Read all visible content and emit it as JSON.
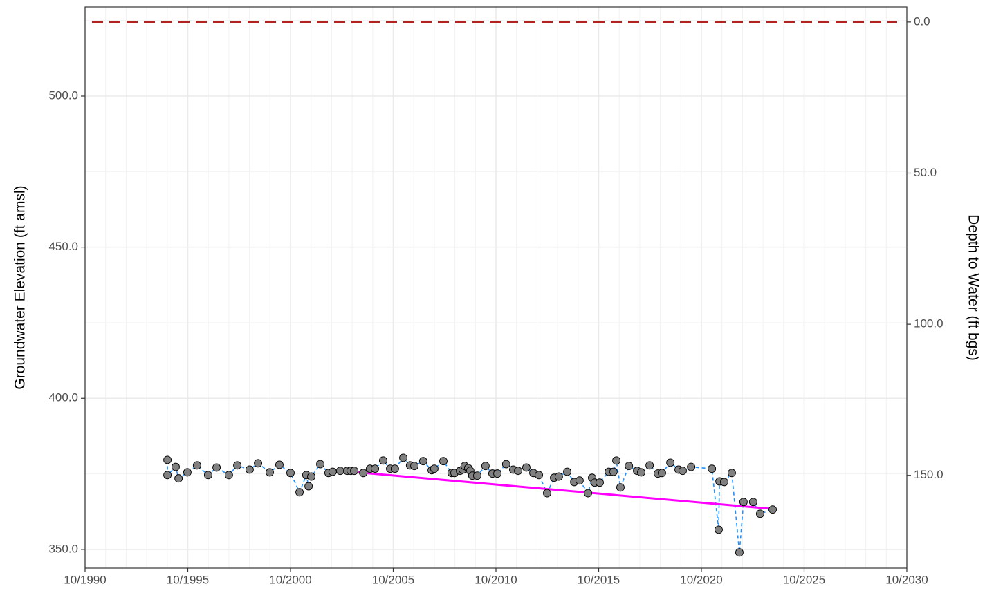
{
  "chart_data": {
    "type": "scatter",
    "y_label": "Groundwater Elevation (ft amsl)",
    "y2_label": "Depth to Water (ft bgs)",
    "xlim": [
      1990.75,
      2030.75
    ],
    "xticks": [
      {
        "value": 1990.75,
        "label": "10/1990"
      },
      {
        "value": 1995.75,
        "label": "10/1995"
      },
      {
        "value": 2000.75,
        "label": "10/2000"
      },
      {
        "value": 2005.75,
        "label": "10/2005"
      },
      {
        "value": 2010.75,
        "label": "10/2010"
      },
      {
        "value": 2015.75,
        "label": "10/2015"
      },
      {
        "value": 2020.75,
        "label": "10/2020"
      },
      {
        "value": 2025.75,
        "label": "10/2025"
      },
      {
        "value": 2030.75,
        "label": "10/2030"
      }
    ],
    "ylim": [
      343.8,
      529.5
    ],
    "yticks": [
      {
        "value": 350,
        "label": "350.0"
      },
      {
        "value": 400,
        "label": "400.0"
      },
      {
        "value": 450,
        "label": "450.0"
      },
      {
        "value": 500,
        "label": "500.0"
      }
    ],
    "y2lim": [
      180.7,
      -5
    ],
    "y2ticks": [
      {
        "value": 0,
        "label": "0.0"
      },
      {
        "value": 50,
        "label": "50.0"
      },
      {
        "value": 100,
        "label": "100.0"
      },
      {
        "value": 150,
        "label": "150.0"
      }
    ],
    "grid": true,
    "minor_grid": true,
    "series": [
      {
        "color": "#808080",
        "line_color": "#1e90ff",
        "x": [
          1994.76,
          1994.76,
          1995.16,
          1995.3,
          1995.73,
          1996.2,
          1996.74,
          1997.15,
          1997.75,
          1998.16,
          1998.76,
          1999.17,
          1999.74,
          2000.21,
          2000.75,
          2001.19,
          2001.52,
          2001.63,
          2001.76,
          2002.2,
          2002.6,
          2002.8,
          2003.17,
          2003.51,
          2003.68,
          2003.85,
          2004.29,
          2004.62,
          2004.86,
          2005.26,
          2005.6,
          2005.83,
          2006.24,
          2006.57,
          2006.78,
          2007.21,
          2007.62,
          2007.75,
          2008.19,
          2008.59,
          2008.73,
          2009.0,
          2009.13,
          2009.23,
          2009.4,
          2009.5,
          2009.6,
          2009.84,
          2010.24,
          2010.58,
          2010.82,
          2011.25,
          2011.59,
          2011.83,
          2012.23,
          2012.57,
          2012.84,
          2013.24,
          2013.58,
          2013.81,
          2014.22,
          2014.56,
          2014.82,
          2015.23,
          2015.43,
          2015.56,
          2015.8,
          2016.24,
          2016.47,
          2016.61,
          2016.81,
          2017.22,
          2017.62,
          2017.82,
          2018.23,
          2018.63,
          2018.83,
          2019.24,
          2019.64,
          2019.84,
          2020.25,
          2021.26,
          2021.59,
          2021.63,
          2021.86,
          2022.23,
          2022.6,
          2022.8,
          2023.27,
          2023.61,
          2024.22
        ],
        "values": [
          379.6,
          374.6,
          377.3,
          373.5,
          375.5,
          377.8,
          374.6,
          377.1,
          374.6,
          377.8,
          376.4,
          378.5,
          375.5,
          378.0,
          375.3,
          368.9,
          374.6,
          370.9,
          374.1,
          378.2,
          375.3,
          375.7,
          376.0,
          376.0,
          376.0,
          376.0,
          375.3,
          376.7,
          376.7,
          379.4,
          376.7,
          376.7,
          380.3,
          377.8,
          377.6,
          379.2,
          376.2,
          376.7,
          379.2,
          375.3,
          375.3,
          376.0,
          376.4,
          377.6,
          376.9,
          376.0,
          374.4,
          374.4,
          377.6,
          375.1,
          375.1,
          378.2,
          376.4,
          376.0,
          377.1,
          375.3,
          374.6,
          368.6,
          373.7,
          374.1,
          375.7,
          372.3,
          372.8,
          368.6,
          373.7,
          372.1,
          372.1,
          375.7,
          375.7,
          379.4,
          370.5,
          377.6,
          376.0,
          375.5,
          377.8,
          375.1,
          375.3,
          378.7,
          376.4,
          376.0,
          377.3,
          376.7,
          356.5,
          372.5,
          372.3,
          375.3,
          349.0,
          365.7,
          365.7,
          361.8,
          363.2
        ]
      }
    ],
    "trend": {
      "color": "#ff00ff",
      "x": [
        2003.17,
        2024.22
      ],
      "values": [
        376.0,
        363.4
      ]
    },
    "hlines": [
      {
        "value": 0,
        "axis": "y2",
        "color": "#b22222"
      }
    ]
  }
}
